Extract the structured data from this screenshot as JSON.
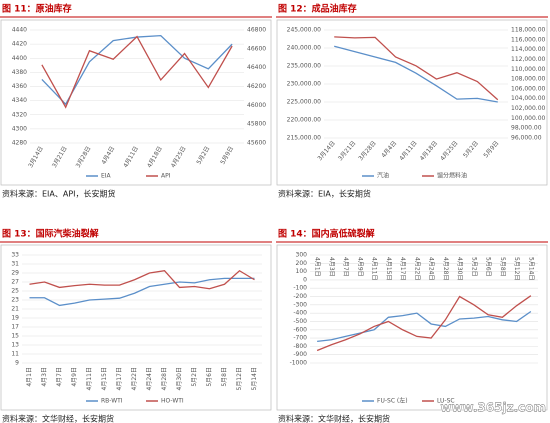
{
  "chart_data": [
    {
      "type": "line",
      "title": "图 11：原油库存",
      "source": "资料来源：EIA、API，长安期货",
      "categories": [
        "3月14日",
        "3月21日",
        "3月28日",
        "4月4日",
        "4月11日",
        "4月18日",
        "4月25日",
        "5月2日",
        "5月9日"
      ],
      "series": [
        {
          "name": "EIA",
          "color": "#5b8fc9",
          "values": [
            4370,
            4335,
            4395,
            4425,
            4430,
            4432,
            4400,
            4385,
            4420
          ]
        },
        {
          "name": "API",
          "color": "#c0504d",
          "axis": "y2",
          "values": [
            46430,
            45980,
            46580,
            46490,
            46730,
            46270,
            46550,
            46190,
            46630
          ]
        }
      ],
      "ylim": [
        4280,
        4440
      ],
      "yticks": [
        4280,
        4300,
        4320,
        4340,
        4360,
        4380,
        4400,
        4420,
        4440
      ],
      "y2lim": [
        45600,
        46800
      ],
      "y2ticks": [
        45600,
        45800,
        46000,
        46200,
        46400,
        46600,
        46800
      ],
      "grid": true
    },
    {
      "type": "line",
      "title": "图 12：成品油库存",
      "source": "资料来源：EIA，长安期货",
      "categories": [
        "3月14日",
        "3月21日",
        "3月28日",
        "4月4日",
        "4月11日",
        "4月18日",
        "4月25日",
        "5月2日",
        "5月9日"
      ],
      "series": [
        {
          "name": "汽油",
          "color": "#5b8fc9",
          "values": [
            240500,
            239000,
            237500,
            236000,
            233000,
            229500,
            225800,
            226000,
            225000
          ]
        },
        {
          "name": "馏分燃料油",
          "color": "#c0504d",
          "axis": "y2",
          "values": [
            116600,
            116400,
            116500,
            112500,
            110700,
            108000,
            109300,
            107500,
            103800
          ]
        }
      ],
      "ylim": [
        215000,
        245000
      ],
      "yticks": [
        {
          "value": 215000,
          "label": "215,000.00"
        },
        {
          "value": 220000,
          "label": "220,000.00"
        },
        {
          "value": 225000,
          "label": "225,000.00"
        },
        {
          "value": 230000,
          "label": "230,000.00"
        },
        {
          "value": 235000,
          "label": "235,000.00"
        },
        {
          "value": 240000,
          "label": "240,000.00"
        },
        {
          "value": 245000,
          "label": "245,000.00"
        }
      ],
      "y2lim": [
        96000,
        118000
      ],
      "y2ticks": [
        {
          "value": 96000,
          "label": "96,000.00"
        },
        {
          "value": 98000,
          "label": "98,000.00"
        },
        {
          "value": 100000,
          "label": "100,000.00"
        },
        {
          "value": 102000,
          "label": "102,000.00"
        },
        {
          "value": 104000,
          "label": "104,000.00"
        },
        {
          "value": 106000,
          "label": "106,000.00"
        },
        {
          "value": 108000,
          "label": "108,000.00"
        },
        {
          "value": 110000,
          "label": "110,000.00"
        },
        {
          "value": 112000,
          "label": "112,000.00"
        },
        {
          "value": 114000,
          "label": "114,000.00"
        },
        {
          "value": 116000,
          "label": "116,000.00"
        },
        {
          "value": 118000,
          "label": "118,000.00"
        }
      ],
      "grid": true
    },
    {
      "type": "line",
      "title": "图 13：国际汽柴油裂解",
      "source": "资料来源：文华财经，长安期货",
      "categories": [
        "4月1日",
        "4月3日",
        "4月7日",
        "4月9日",
        "4月11日",
        "4月15日",
        "4月17日",
        "4月22日",
        "4月24日",
        "4月28日",
        "4月30日",
        "5月2日",
        "5月6日",
        "5月8日",
        "5月12日",
        "5月14日"
      ],
      "series": [
        {
          "name": "RB-WTI",
          "color": "#5b8fc9",
          "values": [
            23.5,
            23.5,
            21.8,
            22.3,
            23,
            23.2,
            23.4,
            24.5,
            26,
            26.5,
            27,
            26.8,
            27.5,
            27.8,
            27.8,
            27.8
          ]
        },
        {
          "name": "HO-WTI",
          "color": "#c0504d",
          "values": [
            26.5,
            27,
            25.8,
            26.2,
            26.5,
            26.3,
            26.3,
            27.5,
            29,
            29.5,
            25.8,
            26,
            25.5,
            26.5,
            29.5,
            27.5
          ]
        }
      ],
      "ylim": [
        9,
        33
      ],
      "yticks": [
        9,
        11,
        13,
        15,
        17,
        19,
        21,
        23,
        25,
        27,
        29,
        31,
        33
      ],
      "grid": true
    },
    {
      "type": "line",
      "title": "图 14：国内高低硫裂解",
      "source": "资料来源：文华财经，长安期货",
      "watermark": "www.365jz.com",
      "categories": [
        "4月1日",
        "4月3日",
        "4月7日",
        "4月9日",
        "4月11日",
        "4月15日",
        "4月17日",
        "4月22日",
        "4月24日",
        "4月28日",
        "4月30日",
        "5月2日",
        "5月6日",
        "5月8日",
        "5月12日",
        "5月14日"
      ],
      "series": [
        {
          "name": "FU-SC (左)",
          "color": "#5b8fc9",
          "values": [
            -740,
            -720,
            -680,
            -640,
            -600,
            -450,
            -430,
            -400,
            -530,
            -560,
            -470,
            -460,
            -440,
            -480,
            -500,
            -380
          ]
        },
        {
          "name": "LU-SC",
          "color": "#c0504d",
          "values": [
            -850,
            -780,
            -720,
            -650,
            -560,
            -500,
            -600,
            -680,
            -700,
            -480,
            -200,
            -300,
            -420,
            -450,
            -310,
            -190
          ]
        }
      ],
      "ylim": [
        -1000,
        300
      ],
      "yticks": [
        -1000,
        -900,
        -800,
        -700,
        -600,
        -500,
        -400,
        -300,
        -200,
        -100,
        0,
        100,
        200,
        300
      ],
      "grid": true
    }
  ]
}
